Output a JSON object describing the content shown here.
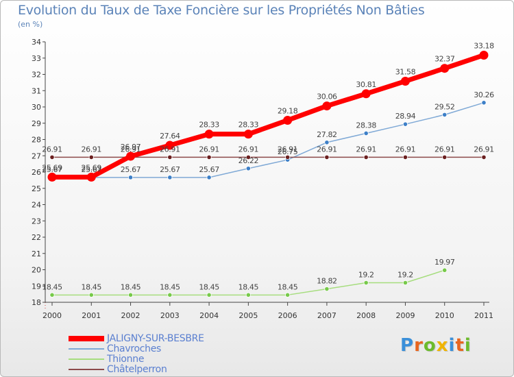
{
  "header": {
    "title": "Evolution du Taux de Taxe Foncière sur les Propriétés Non Bâties",
    "unit": "(en %)"
  },
  "logo": {
    "text": "Proxiti"
  },
  "chart_data": {
    "type": "line",
    "title": "Evolution du Taux de Taxe Foncière sur les Propriétés Non Bâties",
    "ylabel": "(en %)",
    "xlabel": "",
    "x": [
      "2000",
      "2001",
      "2002",
      "2003",
      "2004",
      "2005",
      "2006",
      "2007",
      "2008",
      "2009",
      "2010",
      "2011"
    ],
    "ylim": [
      18,
      34
    ],
    "yticks": [
      "18",
      "19",
      "20",
      "21",
      "22",
      "23",
      "24",
      "25",
      "26",
      "27",
      "28",
      "29",
      "30",
      "31",
      "32",
      "33",
      "34"
    ],
    "grid": false,
    "legend_position": "bottom-left",
    "series": [
      {
        "name": "JALIGNY-SUR-BESBRE",
        "color": "#ff0000",
        "point_color": "#ff0000",
        "values": [
          25.69,
          25.69,
          26.97,
          27.64,
          28.33,
          28.33,
          29.18,
          30.06,
          30.81,
          31.58,
          32.37,
          33.18
        ],
        "labels": [
          "25.69",
          "25.69",
          "26.97",
          "27.64",
          "28.33",
          "28.33",
          "29.18",
          "30.06",
          "30.81",
          "31.58",
          "32.37",
          "33.18"
        ]
      },
      {
        "name": "Chavroches",
        "color": "#7fa9d6",
        "point_color": "#3d7fc7",
        "values": [
          25.67,
          25.67,
          25.67,
          25.67,
          25.67,
          26.22,
          26.75,
          27.82,
          28.38,
          28.94,
          29.52,
          30.26
        ],
        "labels": [
          "25.67",
          "25.67",
          "25.67",
          "25.67",
          "25.67",
          "26.22",
          "26.75",
          "27.82",
          "28.38",
          "28.94",
          "29.52",
          "30.26"
        ]
      },
      {
        "name": "Thionne",
        "color": "#a6dd7e",
        "point_color": "#77c94a",
        "values": [
          18.45,
          18.45,
          18.45,
          18.45,
          18.45,
          18.45,
          18.45,
          18.82,
          19.2,
          19.2,
          19.97,
          null
        ],
        "labels": [
          "18.45",
          "18.45",
          "18.45",
          "18.45",
          "18.45",
          "18.45",
          "18.45",
          "18.82",
          "19.2",
          "19.2",
          "19.97",
          ""
        ]
      },
      {
        "name": "Châtelperron",
        "color": "#8c4a4a",
        "point_color": "#6b1f1f",
        "values": [
          26.91,
          26.91,
          26.91,
          26.91,
          26.91,
          26.91,
          26.91,
          26.91,
          26.91,
          26.91,
          26.91,
          26.91
        ],
        "labels": [
          "26.91",
          "26.91",
          "26.91",
          "26.91",
          "26.91",
          "26.91",
          "26.91",
          "26.91",
          "26.91",
          "26.91",
          "26.91",
          "26.91"
        ]
      }
    ]
  }
}
